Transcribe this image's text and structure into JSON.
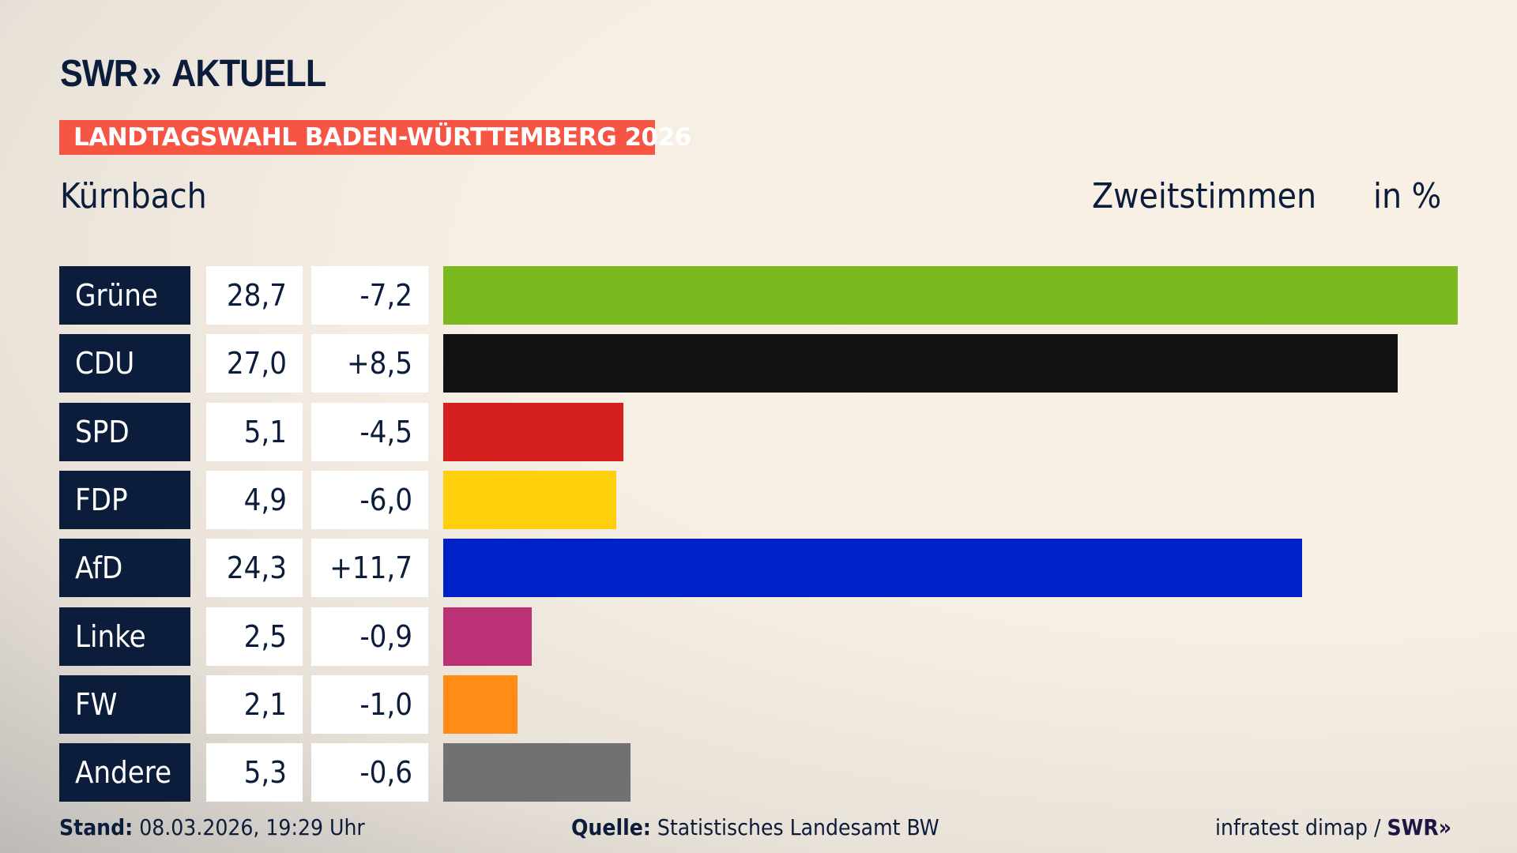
{
  "header": {
    "logo_text": "SWR",
    "logo_chevrons": "»",
    "logo_suffix": "AKTUELL",
    "banner": "LANDTAGSWAHL BADEN-WÜRTTEMBERG 2026",
    "place": "Kürnbach",
    "vote_type": "Zweitstimmen",
    "unit": "in %"
  },
  "chart_data": {
    "type": "bar",
    "orientation": "horizontal",
    "categories": [
      "Grüne",
      "CDU",
      "SPD",
      "FDP",
      "AfD",
      "Linke",
      "FW",
      "Andere"
    ],
    "values": [
      28.7,
      27.0,
      5.1,
      4.9,
      24.3,
      2.5,
      2.1,
      5.3
    ],
    "value_labels": [
      "28,7",
      "27,0",
      "5,1",
      "4,9",
      "24,3",
      "2,5",
      "2,1",
      "5,3"
    ],
    "diff_labels": [
      "-7,2",
      "+8,5",
      "-4,5",
      "-6,0",
      "+11,7",
      "-0,9",
      "-1,0",
      "-0,6"
    ],
    "diffs": [
      -7.2,
      8.5,
      -4.5,
      -6.0,
      11.7,
      -0.9,
      -1.0,
      -0.6
    ],
    "colors": [
      "#7aba1e",
      "#121212",
      "#d6201f",
      "#fecf0a",
      "#0020c8",
      "#bc3076",
      "#ff8c14",
      "#717173"
    ],
    "ylabel": "Zweitstimmen",
    "unit": "in %"
  },
  "footer": {
    "stand_label": "Stand:",
    "stand_value": " 08.03.2026, 19:29 Uhr",
    "source_label": "Quelle:",
    "source_value": " Statistisches Landesamt BW",
    "credit": "infratest dimap / ",
    "credit_logo": "SWR»"
  }
}
